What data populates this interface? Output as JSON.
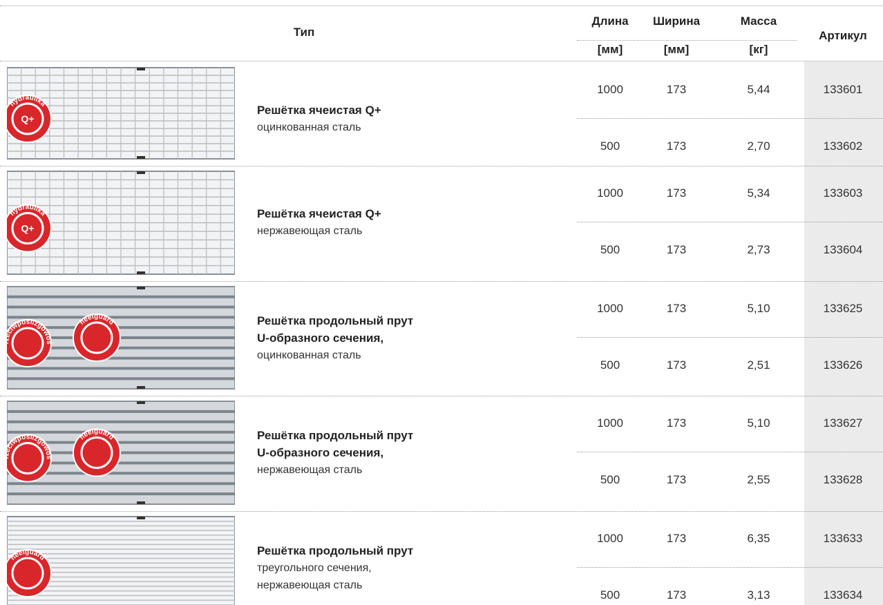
{
  "header": {
    "type": "Тип",
    "columns": [
      {
        "name": "Длина",
        "unit": "[мм]"
      },
      {
        "name": "Ширина",
        "unit": "[мм]"
      },
      {
        "name": "Масса",
        "unit": "[кг]"
      }
    ],
    "article": "Артикул"
  },
  "products": [
    {
      "name": [
        "Решётка ячеистая Q+"
      ],
      "material": [
        "оцинкованная сталь"
      ],
      "badges": [
        {
          "label": "hydraulika",
          "symbol": "Q+"
        }
      ],
      "variants": [
        [
          "1000",
          "173",
          "5,44",
          "133601"
        ],
        [
          "500",
          "173",
          "2,70",
          "133602"
        ]
      ]
    },
    {
      "name": [
        "Решётка ячеистая Q+"
      ],
      "material": [
        "нержавеющая сталь"
      ],
      "badges": [
        {
          "label": "hydraulika",
          "symbol": "Q+"
        }
      ],
      "variants": [
        [
          "1000",
          "173",
          "5,34",
          "133603"
        ],
        [
          "500",
          "173",
          "2,73",
          "133604"
        ]
      ]
    },
    {
      "name": [
        "Решётка продольный прут",
        "U-образного сечения,"
      ],
      "material": [
        "оцинкованная сталь"
      ],
      "badges": [
        {
          "label": "przeciwpoślizgowość"
        },
        {
          "label": "heelguard"
        }
      ],
      "variants": [
        [
          "1000",
          "173",
          "5,10",
          "133625"
        ],
        [
          "500",
          "173",
          "2,51",
          "133626"
        ]
      ]
    },
    {
      "name": [
        "Решётка продольный прут",
        "U-образного сечения,"
      ],
      "material": [
        "нержавеющая сталь"
      ],
      "badges": [
        {
          "label": "przeciwpoślizgowość"
        },
        {
          "label": "heelguard"
        }
      ],
      "variants": [
        [
          "1000",
          "173",
          "5,10",
          "133627"
        ],
        [
          "500",
          "173",
          "2,55",
          "133628"
        ]
      ]
    },
    {
      "name": [
        "Решётка продольный прут"
      ],
      "material": [
        "треугольного сечения,",
        "нержавеющая сталь"
      ],
      "badges": [
        {
          "label": "heelguard"
        }
      ],
      "variants": [
        [
          "1000",
          "173",
          "6,35",
          "133633"
        ],
        [
          "500",
          "173",
          "3,13",
          "133634"
        ]
      ]
    }
  ]
}
